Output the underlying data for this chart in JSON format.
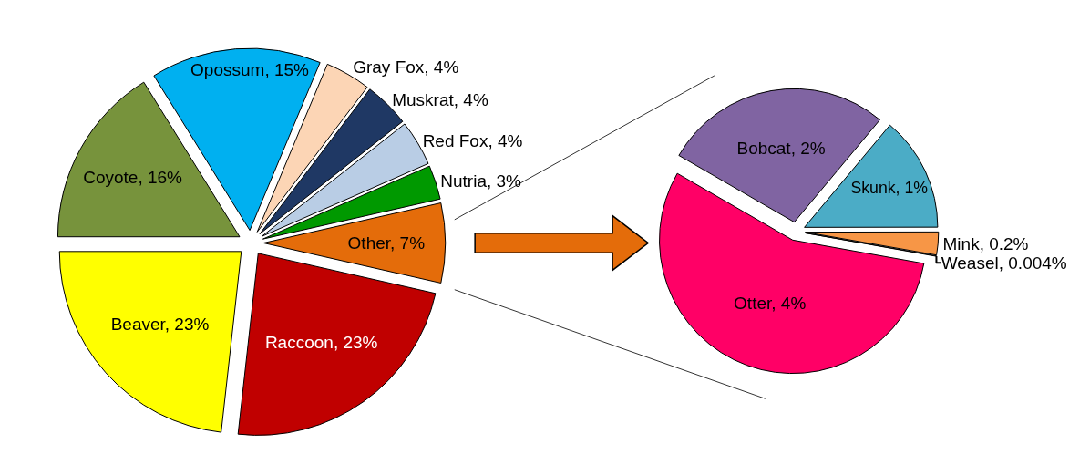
{
  "chart_data": [
    {
      "type": "pie",
      "categories": [
        "Raccoon",
        "Beaver",
        "Coyote",
        "Opossum",
        "Gray Fox",
        "Muskrat",
        "Red Fox",
        "Nutria",
        "Other"
      ],
      "values": [
        23,
        23,
        16,
        15,
        4,
        4,
        4,
        3,
        7
      ],
      "colors": [
        "#c00000",
        "#ffff00",
        "#77933c",
        "#00b0f0",
        "#fcd5b5",
        "#1f3864",
        "#b9cde5",
        "#009900",
        "#e46c0a"
      ],
      "value_labels": [
        "23%",
        "23%",
        "16%",
        "15%",
        "4%",
        "4%",
        "4%",
        "3%",
        "7%"
      ]
    },
    {
      "type": "pie",
      "categories": [
        "Bobcat",
        "Skunk",
        "Mink",
        "Weasel",
        "Otter"
      ],
      "values": [
        2,
        1,
        0.2,
        0.004,
        4
      ],
      "colors": [
        "#8064a2",
        "#4bacc6",
        "#f79646",
        "#ffffff",
        "#ff0066"
      ],
      "value_labels": [
        "2%",
        "1%",
        "0.2%",
        "0.004%",
        "4%"
      ]
    }
  ]
}
